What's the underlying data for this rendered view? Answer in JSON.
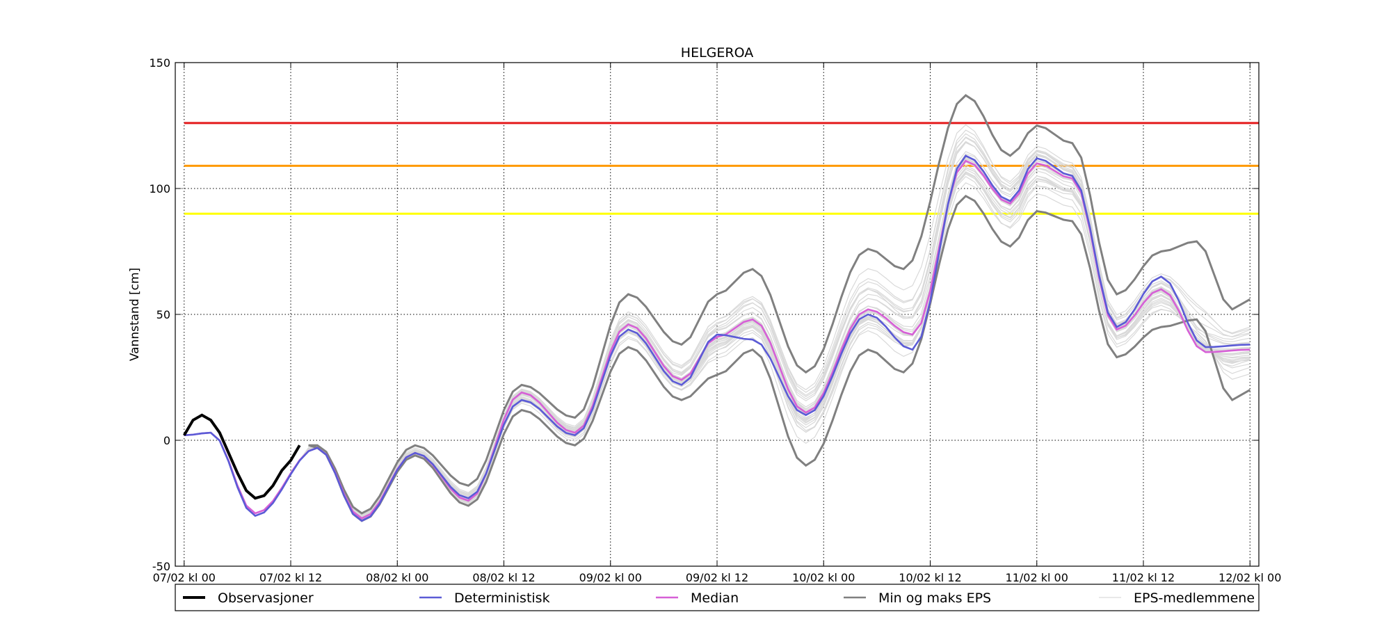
{
  "chart_data": {
    "type": "line",
    "title": "HELGEROA",
    "ylabel": "Vannstand [cm]",
    "xlabel": "",
    "x_unit": "hours since 07/02 kl 00",
    "xlim": [
      -1,
      121
    ],
    "ylim": [
      -50,
      150
    ],
    "grid": true,
    "y_ticks": [
      150,
      100,
      50,
      0,
      -50
    ],
    "x_ticks": [
      {
        "h": 0,
        "label": "07/02 kl 00"
      },
      {
        "h": 12,
        "label": "07/02 kl 12"
      },
      {
        "h": 24,
        "label": "08/02 kl 00"
      },
      {
        "h": 36,
        "label": "08/02 kl 12"
      },
      {
        "h": 48,
        "label": "09/02 kl 00"
      },
      {
        "h": 60,
        "label": "09/02 kl 12"
      },
      {
        "h": 72,
        "label": "10/02 kl 00"
      },
      {
        "h": 84,
        "label": "10/02 kl 12"
      },
      {
        "h": 96,
        "label": "11/02 kl 00"
      },
      {
        "h": 108,
        "label": "11/02 kl 12"
      },
      {
        "h": 120,
        "label": "12/02 kl 00"
      }
    ],
    "thresholds": [
      {
        "value": 126,
        "color": "#e41a1c"
      },
      {
        "value": 109,
        "color": "#ff9900"
      },
      {
        "value": 90,
        "color": "#ffff00"
      }
    ],
    "x_hours_start": 0,
    "x_hours_step": 1,
    "x_hours_end": 120,
    "observations": [
      2,
      8,
      10,
      8,
      3,
      -5,
      -13,
      -20,
      -23,
      -22,
      -18,
      -12,
      -8,
      -2
    ],
    "deterministic_knots": [
      [
        0,
        2
      ],
      [
        3,
        3
      ],
      [
        8,
        -30
      ],
      [
        15,
        -3
      ],
      [
        20,
        -32
      ],
      [
        26,
        -5
      ],
      [
        32,
        -23
      ],
      [
        38,
        16
      ],
      [
        44,
        2
      ],
      [
        50,
        44
      ],
      [
        56,
        22
      ],
      [
        60,
        42
      ],
      [
        64,
        40
      ],
      [
        70,
        10
      ],
      [
        77,
        50
      ],
      [
        82,
        36
      ],
      [
        88,
        113
      ],
      [
        93,
        95
      ],
      [
        96,
        112
      ],
      [
        100,
        105
      ],
      [
        105,
        45
      ],
      [
        110,
        65
      ],
      [
        115,
        37
      ],
      [
        120,
        38
      ]
    ],
    "median_knots": [
      [
        0,
        2
      ],
      [
        3,
        3
      ],
      [
        8,
        -29
      ],
      [
        15,
        -3
      ],
      [
        20,
        -31
      ],
      [
        26,
        -5
      ],
      [
        32,
        -24
      ],
      [
        38,
        19
      ],
      [
        44,
        3
      ],
      [
        50,
        46
      ],
      [
        56,
        24
      ],
      [
        60,
        41
      ],
      [
        64,
        48
      ],
      [
        70,
        11
      ],
      [
        77,
        52
      ],
      [
        82,
        42
      ],
      [
        88,
        111
      ],
      [
        93,
        94
      ],
      [
        96,
        110
      ],
      [
        100,
        104
      ],
      [
        105,
        44
      ],
      [
        110,
        60
      ],
      [
        115,
        35
      ],
      [
        120,
        36
      ]
    ],
    "max_knots": [
      [
        14,
        -2
      ],
      [
        15,
        -2
      ],
      [
        20,
        -29
      ],
      [
        26,
        -2
      ],
      [
        32,
        -18
      ],
      [
        38,
        22
      ],
      [
        44,
        9
      ],
      [
        50,
        58
      ],
      [
        56,
        38
      ],
      [
        60,
        58
      ],
      [
        64,
        68
      ],
      [
        70,
        27
      ],
      [
        77,
        76
      ],
      [
        81,
        68
      ],
      [
        88,
        137
      ],
      [
        93,
        113
      ],
      [
        96,
        125
      ],
      [
        100,
        118
      ],
      [
        105,
        58
      ],
      [
        110,
        75
      ],
      [
        114,
        79
      ],
      [
        118,
        52
      ],
      [
        120,
        56
      ]
    ],
    "min_knots": [
      [
        14,
        -2
      ],
      [
        15,
        -3
      ],
      [
        20,
        -32
      ],
      [
        26,
        -6
      ],
      [
        32,
        -26
      ],
      [
        38,
        12
      ],
      [
        44,
        -2
      ],
      [
        50,
        37
      ],
      [
        56,
        16
      ],
      [
        60,
        26
      ],
      [
        64,
        36
      ],
      [
        70,
        -10
      ],
      [
        77,
        36
      ],
      [
        81,
        27
      ],
      [
        88,
        97
      ],
      [
        93,
        77
      ],
      [
        96,
        91
      ],
      [
        100,
        87
      ],
      [
        105,
        33
      ],
      [
        110,
        45
      ],
      [
        114,
        48
      ],
      [
        118,
        16
      ],
      [
        120,
        20
      ]
    ],
    "n_members": 28,
    "legend": [
      {
        "label": "Observasjoner",
        "color": "#000000"
      },
      {
        "label": "Deterministisk",
        "color": "#5b5bd6"
      },
      {
        "label": "Median",
        "color": "#d660d6"
      },
      {
        "label": "Min og maks EPS",
        "color": "#808080"
      },
      {
        "label": "EPS-medlemmene",
        "color": "#d9d9d9"
      }
    ],
    "legend_position": "bottom"
  }
}
